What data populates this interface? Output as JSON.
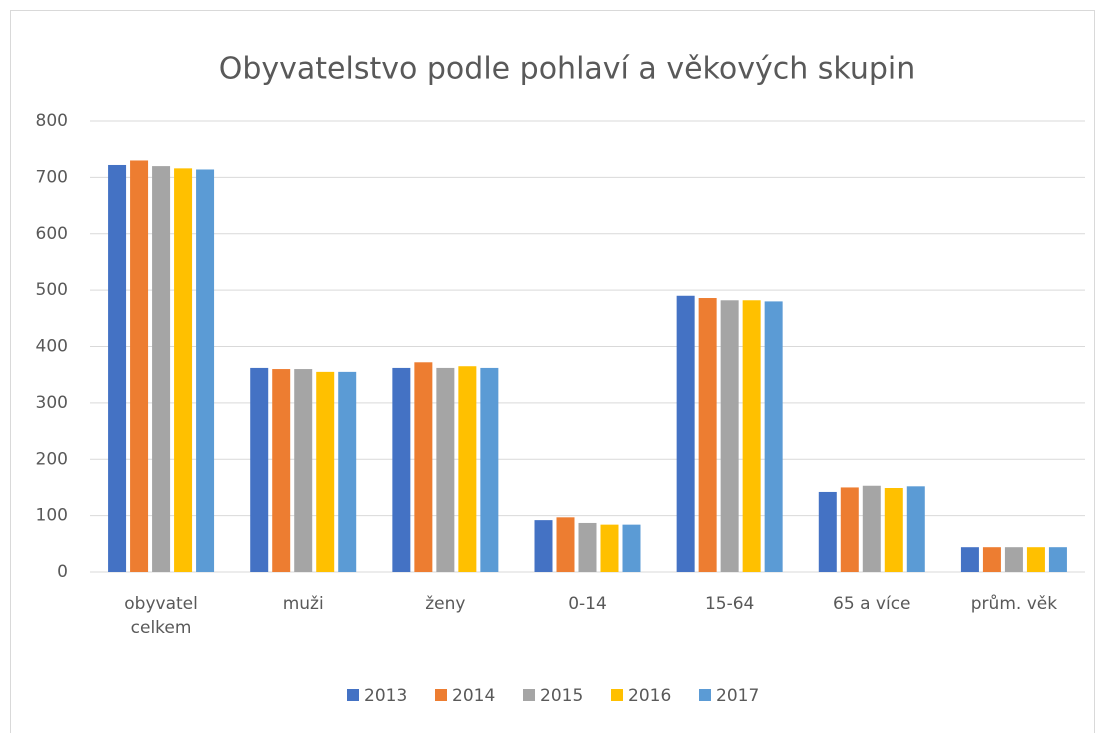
{
  "chart_data": {
    "type": "bar",
    "title": "Obyvatelstvo podle pohlaví a věkových skupin",
    "categories": [
      "obyvatel celkem",
      "muži",
      "ženy",
      "0-14",
      "15-64",
      "65 a více",
      "prům. věk"
    ],
    "series": [
      {
        "name": "2013",
        "color": "#4472c4",
        "values": [
          722,
          362,
          362,
          92,
          490,
          142,
          44
        ]
      },
      {
        "name": "2014",
        "color": "#ed7d31",
        "values": [
          730,
          360,
          372,
          97,
          486,
          150,
          44
        ]
      },
      {
        "name": "2015",
        "color": "#a5a5a5",
        "values": [
          720,
          360,
          362,
          87,
          482,
          153,
          44
        ]
      },
      {
        "name": "2016",
        "color": "#ffc000",
        "values": [
          716,
          355,
          365,
          84,
          482,
          149,
          44
        ]
      },
      {
        "name": "2017",
        "color": "#5b9bd5",
        "values": [
          714,
          355,
          362,
          84,
          480,
          152,
          44
        ]
      }
    ],
    "ylim": [
      0,
      800
    ],
    "yticks": [
      0,
      100,
      200,
      300,
      400,
      500,
      600,
      700,
      800
    ],
    "grid": true,
    "legend": "bottom"
  }
}
